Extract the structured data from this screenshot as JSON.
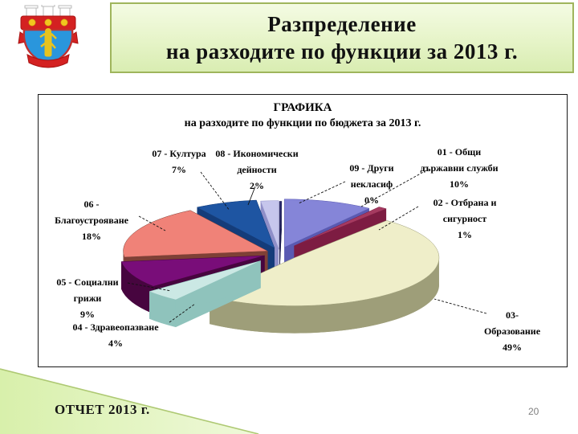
{
  "header": {
    "title_line1": "Разпределение",
    "title_line2": "на разходите по функции за 2013 г."
  },
  "footer": {
    "report_label": "ОТЧЕТ 2013 г.",
    "page_number": "20"
  },
  "chart_data": {
    "type": "pie",
    "title": "ГРАФИКА",
    "subtitle": "на разходите по функции по бюджета за 2013 г.",
    "unit": "%",
    "legend_position": "none",
    "style": "3d-exploded",
    "slices": [
      {
        "code": "01",
        "name": "Общи държавни служби",
        "value": 10,
        "label_lines": [
          "01 - Общи",
          "държавни служби",
          "10%"
        ],
        "color": "#8585d8",
        "side": "#5a5ab2"
      },
      {
        "code": "02",
        "name": "Отбрана и сигурност",
        "value": 1,
        "label_lines": [
          "02 - Отбрана и",
          "сигурност",
          "1%"
        ],
        "color": "#a53a60",
        "side": "#7d1c42"
      },
      {
        "code": "03",
        "name": "Образование",
        "value": 49,
        "label_lines": [
          "03- Образование",
          "49%"
        ],
        "color": "#efeec9",
        "side": "#9e9e79"
      },
      {
        "code": "04",
        "name": "Здравеопазване",
        "value": 4,
        "label_lines": [
          "04 - Здравеопазване",
          "4%"
        ],
        "color": "#cbe8e4",
        "side": "#8fc3bc"
      },
      {
        "code": "05",
        "name": "Социални грижи",
        "value": 9,
        "label_lines": [
          "05 - Социални",
          "грижи",
          "9%"
        ],
        "color": "#790d79",
        "side": "#47053f"
      },
      {
        "code": "06",
        "name": "Благоустрояване",
        "value": 18,
        "label_lines": [
          "06 -",
          "Благоустрояване",
          "18%"
        ],
        "color": "#f08278",
        "side": "#7e4036"
      },
      {
        "code": "07",
        "name": "Култура",
        "value": 7,
        "label_lines": [
          "07 - Култура",
          "7%"
        ],
        "color": "#1e55a2",
        "side": "#143c7a"
      },
      {
        "code": "08",
        "name": "Икономически дейности",
        "value": 2,
        "label_lines": [
          "08 - Икономически",
          "дейности",
          "2%"
        ],
        "color": "#c6c6ec",
        "side": "#8f8fc8"
      },
      {
        "code": "09",
        "name": "Други некласиф",
        "value": 0,
        "label_lines": [
          "09 - Други",
          "некласиф",
          "0%"
        ],
        "color": "#2a2a6e",
        "side": "#1c1c50"
      }
    ]
  }
}
